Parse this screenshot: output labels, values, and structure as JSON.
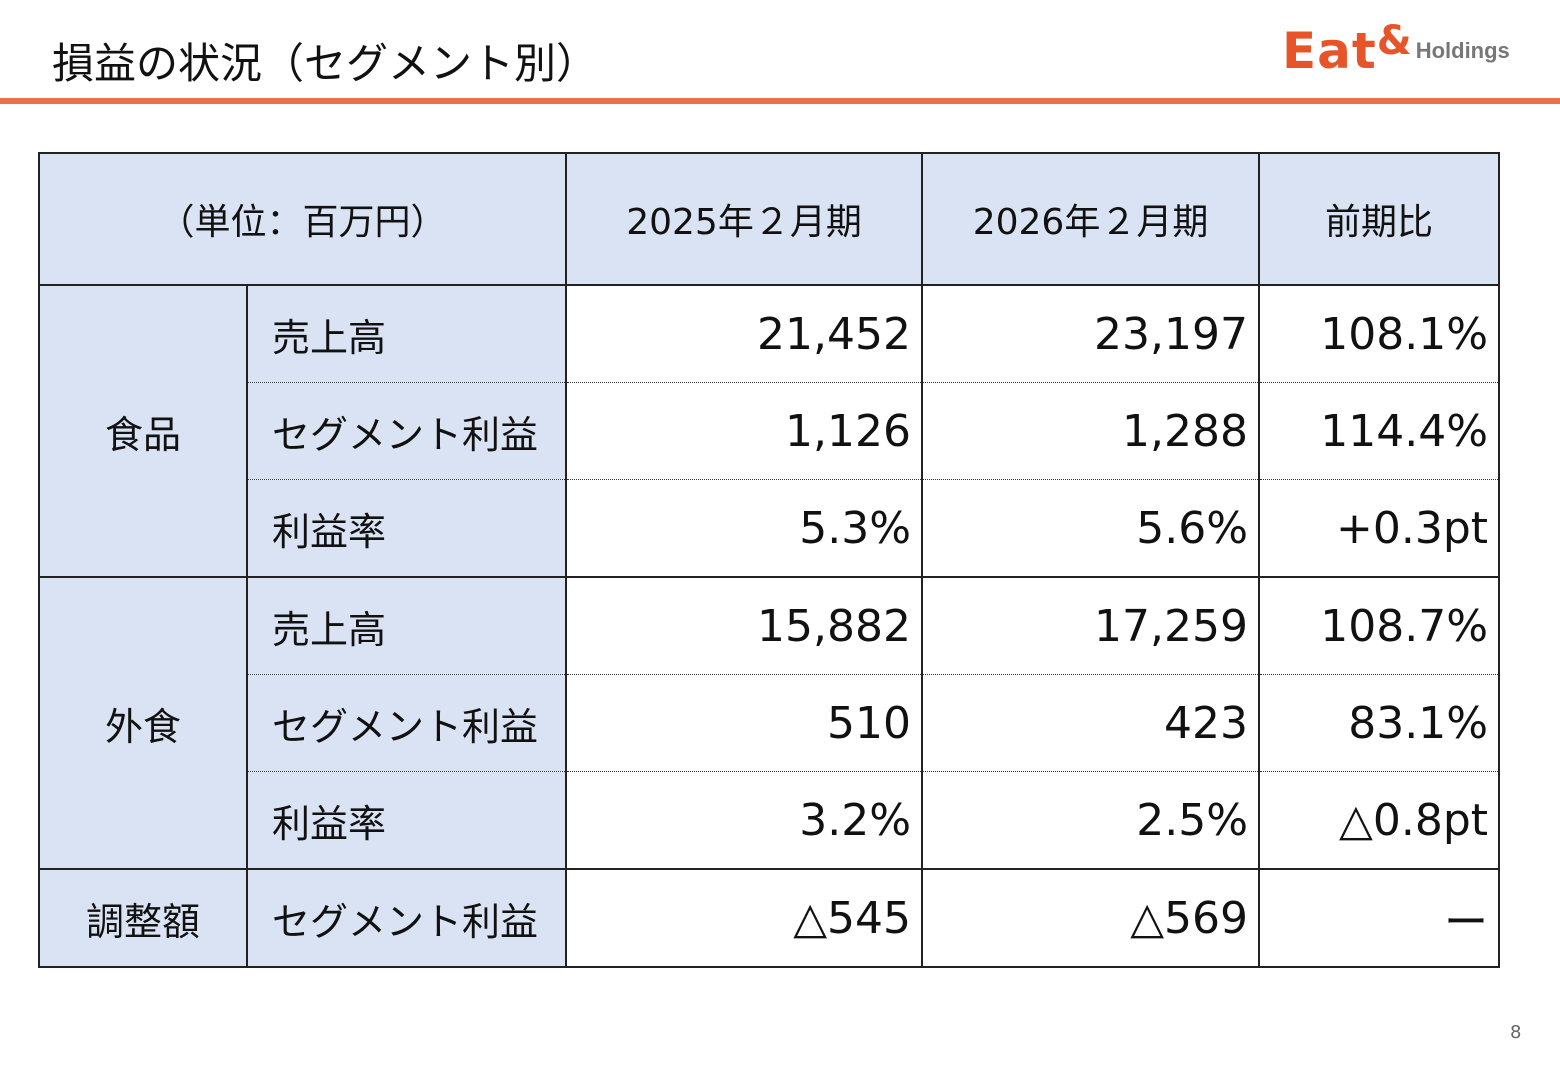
{
  "header": {
    "title": "損益の状況（セグメント別）",
    "logo": {
      "main": "Eat",
      "amp": "&",
      "sub": "Holdings",
      "color": "#e8542a"
    }
  },
  "table": {
    "headers": [
      "（単位：百万円）",
      "2025年２月期",
      "2026年２月期",
      "前期比"
    ],
    "groups": [
      {
        "name": "食品",
        "rows": [
          {
            "label": "売上高",
            "v2025": "21,452",
            "v2026": "23,197",
            "yoy": "108.1%"
          },
          {
            "label": "セグメント利益",
            "v2025": "1,126",
            "v2026": "1,288",
            "yoy": "114.4%"
          },
          {
            "label": "利益率",
            "v2025": "5.3%",
            "v2026": "5.6%",
            "yoy": "+0.3pt"
          }
        ]
      },
      {
        "name": "外食",
        "rows": [
          {
            "label": "売上高",
            "v2025": "15,882",
            "v2026": "17,259",
            "yoy": "108.7%"
          },
          {
            "label": "セグメント利益",
            "v2025": "510",
            "v2026": "423",
            "yoy": "83.1%"
          },
          {
            "label": "利益率",
            "v2025": "3.2%",
            "v2026": "2.5%",
            "yoy": "△0.8pt"
          }
        ]
      },
      {
        "name": "調整額",
        "rows": [
          {
            "label": "セグメント利益",
            "v2025": "△545",
            "v2026": "△569",
            "yoy": "ー"
          }
        ]
      }
    ],
    "header_bg": "#dae3f3"
  },
  "page_number": "8",
  "accent_color": "#ec6f4e"
}
